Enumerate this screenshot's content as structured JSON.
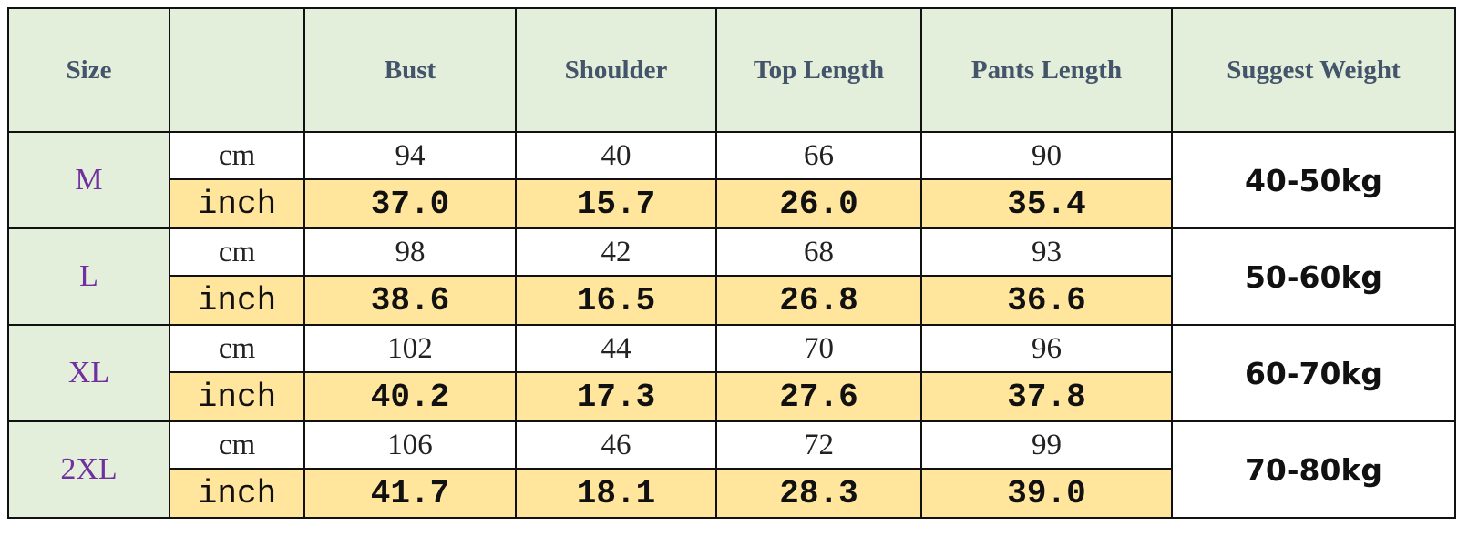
{
  "header": {
    "size": "Size",
    "columns": [
      "Bust",
      "Shoulder",
      "Top Length",
      "Pants Length"
    ],
    "weight": "Suggest Weight"
  },
  "rows": [
    {
      "size": "M",
      "cm_label": "cm",
      "cm": [
        "94",
        "40",
        "66",
        "90"
      ],
      "inch_label": "inch",
      "inch": [
        "37.0",
        "15.7",
        "26.0",
        "35.4"
      ],
      "weight": "40-50kg"
    },
    {
      "size": "L",
      "cm_label": "cm",
      "cm": [
        "98",
        "42",
        "68",
        "93"
      ],
      "inch_label": "inch",
      "inch": [
        "38.6",
        "16.5",
        "26.8",
        "36.6"
      ],
      "weight": "50-60kg"
    },
    {
      "size": "XL",
      "cm_label": "cm",
      "cm": [
        "102",
        "44",
        "70",
        "96"
      ],
      "inch_label": "inch",
      "inch": [
        "40.2",
        "17.3",
        "27.6",
        "37.8"
      ],
      "weight": "60-70kg"
    },
    {
      "size": "2XL",
      "cm_label": "cm",
      "cm": [
        "106",
        "46",
        "72",
        "99"
      ],
      "inch_label": "inch",
      "inch": [
        "41.7",
        "18.1",
        "28.3",
        "39.0"
      ],
      "weight": "70-80kg"
    }
  ]
}
